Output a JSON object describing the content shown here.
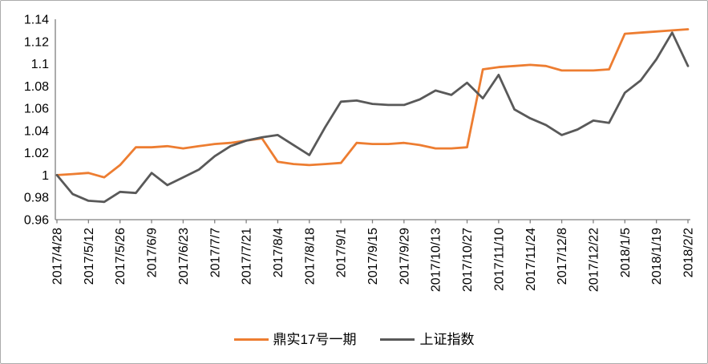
{
  "chart_data": {
    "type": "line",
    "title": "",
    "xlabel": "",
    "ylabel": "",
    "grid": false,
    "legend_position": "bottom-center",
    "x_tick_label_rotation_deg": 90,
    "x_label_every_n_points": 2,
    "ylim": [
      0.96,
      1.14
    ],
    "y_tick_values": [
      0.96,
      0.98,
      1.0,
      1.02,
      1.04,
      1.06,
      1.08,
      1.1,
      1.12,
      1.14
    ],
    "y_tick_labels": [
      "0.96",
      "0.98",
      "1",
      "1.02",
      "1.04",
      "1.06",
      "1.08",
      "1.1",
      "1.12",
      "1.14"
    ],
    "x_tick_labels_shown": [
      "2017/4/28",
      "2017/5/12",
      "2017/5/26",
      "2017/6/9",
      "2017/6/23",
      "2017/7/7",
      "2017/7/21",
      "2017/8/4",
      "2017/8/18",
      "2017/9/1",
      "2017/9/15",
      "2017/9/29",
      "2017/10/13",
      "2017/10/27",
      "2017/11/10",
      "2017/11/24",
      "2017/12/8",
      "2017/12/22",
      "2018/1/5",
      "2018/1/19",
      "2018/2/2"
    ],
    "categories": [
      "2017/4/28",
      "2017/5/5",
      "2017/5/12",
      "2017/5/19",
      "2017/5/26",
      "2017/6/2",
      "2017/6/9",
      "2017/6/16",
      "2017/6/23",
      "2017/6/30",
      "2017/7/7",
      "2017/7/14",
      "2017/7/21",
      "2017/7/28",
      "2017/8/4",
      "2017/8/11",
      "2017/8/18",
      "2017/8/25",
      "2017/9/1",
      "2017/9/8",
      "2017/9/15",
      "2017/9/22",
      "2017/9/29",
      "2017/10/6",
      "2017/10/13",
      "2017/10/20",
      "2017/10/27",
      "2017/11/3",
      "2017/11/10",
      "2017/11/17",
      "2017/11/24",
      "2017/12/1",
      "2017/12/8",
      "2017/12/15",
      "2017/12/22",
      "2017/12/29",
      "2018/1/5",
      "2018/1/12",
      "2018/1/19",
      "2018/1/26",
      "2018/2/2"
    ],
    "series": [
      {
        "name": "鼎实17号一期",
        "color": "#ED7D31",
        "values": [
          1.0,
          1.001,
          1.002,
          0.998,
          1.009,
          1.025,
          1.025,
          1.026,
          1.024,
          1.026,
          1.028,
          1.029,
          1.031,
          1.033,
          1.012,
          1.01,
          1.009,
          1.01,
          1.011,
          1.029,
          1.028,
          1.028,
          1.029,
          1.027,
          1.024,
          1.024,
          1.025,
          1.095,
          1.097,
          1.098,
          1.099,
          1.098,
          1.094,
          1.094,
          1.094,
          1.095,
          1.127,
          1.128,
          1.129,
          1.13,
          1.131
        ]
      },
      {
        "name": "上证指数",
        "color": "#595959",
        "values": [
          1.0,
          0.983,
          0.977,
          0.976,
          0.985,
          0.984,
          1.002,
          0.991,
          0.998,
          1.005,
          1.017,
          1.026,
          1.031,
          1.034,
          1.036,
          1.027,
          1.018,
          1.043,
          1.066,
          1.067,
          1.064,
          1.063,
          1.063,
          1.068,
          1.076,
          1.072,
          1.083,
          1.069,
          1.09,
          1.059,
          1.051,
          1.045,
          1.036,
          1.041,
          1.049,
          1.047,
          1.074,
          1.085,
          1.104,
          1.128,
          1.098
        ]
      }
    ],
    "axis_color": "#808080",
    "tick_label_color": "#000000",
    "tick_font_size": 16
  }
}
